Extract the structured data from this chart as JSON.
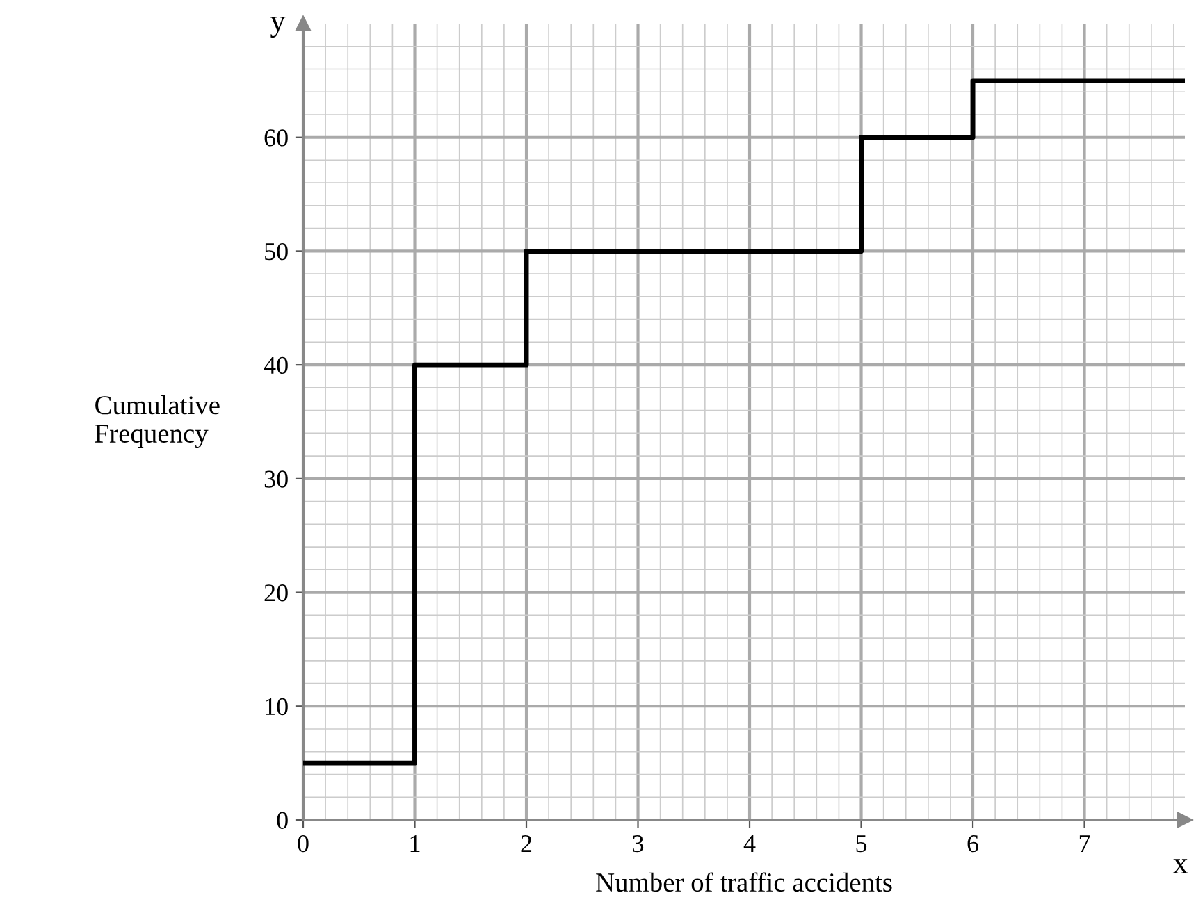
{
  "chart_data": {
    "type": "step",
    "xlabel": "Number of traffic accidents",
    "ylabel": "Cumulative\nFrequency",
    "annotations": [
      "y",
      "x"
    ],
    "x": [
      0,
      1,
      2,
      5,
      6,
      7.9
    ],
    "series": [
      {
        "color": "#000000",
        "values": [
          5,
          40,
          50,
          60,
          65,
          65
        ]
      }
    ],
    "xlim": [
      0,
      7.9
    ],
    "ylim": [
      0,
      70
    ],
    "xticks": [
      0,
      1,
      2,
      3,
      4,
      5,
      6,
      7
    ],
    "yticks": [
      0,
      10,
      20,
      30,
      40,
      50,
      60
    ],
    "grid": true,
    "legend": false
  }
}
